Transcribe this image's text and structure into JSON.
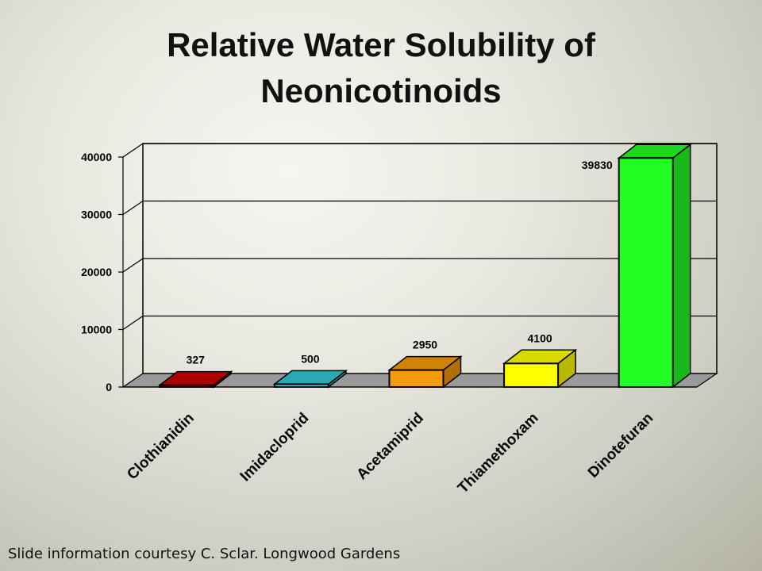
{
  "slide": {
    "title_line1": "Relative Water Solubility of",
    "title_line2": "Neonicotinoids",
    "footer": "Slide information courtesy  C. Sclar. Longwood Gardens"
  },
  "chart_data": {
    "type": "bar",
    "categories": [
      "Clothianidin",
      "Imidacloprid",
      "Acetamiprid",
      "Thiamethoxam",
      "Dinotefuran"
    ],
    "values": [
      327,
      500,
      2950,
      4100,
      39830
    ],
    "data_labels": [
      "327",
      "500",
      "2950",
      "4100",
      "39830"
    ],
    "yticks": [
      0,
      10000,
      20000,
      30000,
      40000
    ],
    "ylim": [
      0,
      40000
    ],
    "grid": true,
    "style": "3d",
    "colors": {
      "Clothianidin": "#cc0000",
      "Imidacloprid": "#33c6d6",
      "Acetamiprid": "#f59a0a",
      "Thiamethoxam": "#ffff00",
      "Dinotefuran": "#22ff22"
    }
  }
}
